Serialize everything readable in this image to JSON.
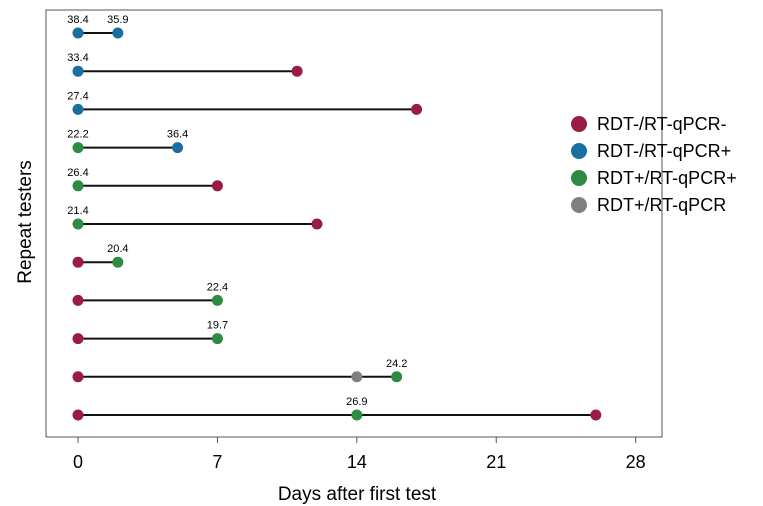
{
  "chart_data": {
    "type": "dumbbell",
    "xlabel": "Days after first test",
    "ylabel": "Repeat testers",
    "x_ticks": [
      0,
      7,
      14,
      21,
      28
    ],
    "xlim": [
      -1.5,
      29
    ],
    "grid": false,
    "legend_position": "right",
    "categories": [
      {
        "name": "RDT-/RT-qPCR-",
        "color": "#9b1b47"
      },
      {
        "name": "RDT-/RT-qPCR+",
        "color": "#1a6fa0"
      },
      {
        "name": "RDT+/RT-qPCR+",
        "color": "#2e8b43"
      },
      {
        "name": "RDT+/RT-qPCR",
        "color": "#808080"
      }
    ],
    "testers": [
      {
        "points": [
          {
            "x": 0,
            "cat": 1,
            "label": "38.4"
          },
          {
            "x": 2,
            "cat": 1,
            "label": "35.9"
          }
        ]
      },
      {
        "points": [
          {
            "x": 0,
            "cat": 1,
            "label": "33.4"
          },
          {
            "x": 11,
            "cat": 0,
            "label": ""
          }
        ]
      },
      {
        "points": [
          {
            "x": 0,
            "cat": 1,
            "label": "27.4"
          },
          {
            "x": 17,
            "cat": 0,
            "label": ""
          }
        ]
      },
      {
        "points": [
          {
            "x": 0,
            "cat": 2,
            "label": "22.2"
          },
          {
            "x": 5,
            "cat": 1,
            "label": "36.4"
          }
        ]
      },
      {
        "points": [
          {
            "x": 0,
            "cat": 2,
            "label": "26.4"
          },
          {
            "x": 7,
            "cat": 0,
            "label": ""
          }
        ]
      },
      {
        "points": [
          {
            "x": 0,
            "cat": 2,
            "label": "21.4"
          },
          {
            "x": 12,
            "cat": 0,
            "label": ""
          }
        ]
      },
      {
        "points": [
          {
            "x": 0,
            "cat": 0,
            "label": ""
          },
          {
            "x": 2,
            "cat": 2,
            "label": "20.4"
          }
        ]
      },
      {
        "points": [
          {
            "x": 0,
            "cat": 0,
            "label": ""
          },
          {
            "x": 7,
            "cat": 2,
            "label": "22.4"
          }
        ]
      },
      {
        "points": [
          {
            "x": 0,
            "cat": 0,
            "label": ""
          },
          {
            "x": 7,
            "cat": 2,
            "label": "19.7"
          }
        ]
      },
      {
        "points": [
          {
            "x": 0,
            "cat": 0,
            "label": ""
          },
          {
            "x": 14,
            "cat": 3,
            "label": ""
          },
          {
            "x": 16,
            "cat": 2,
            "label": "24.2"
          }
        ]
      },
      {
        "points": [
          {
            "x": 0,
            "cat": 0,
            "label": ""
          },
          {
            "x": 14,
            "cat": 2,
            "label": "26.9"
          },
          {
            "x": 26,
            "cat": 0,
            "label": ""
          }
        ]
      }
    ]
  }
}
